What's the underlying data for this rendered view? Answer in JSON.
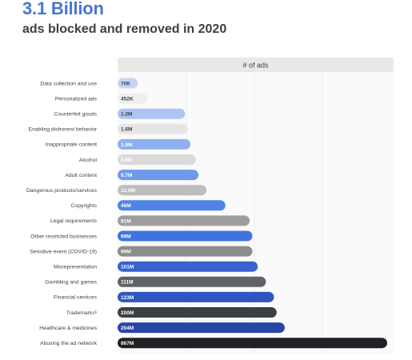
{
  "header": {
    "headline": "3.1 Billion",
    "subhead": "ads blocked and removed in 2020"
  },
  "chart_data": {
    "type": "bar",
    "orientation": "horizontal",
    "column_header": "# of ads",
    "grid": true,
    "categories": [
      "Data collection and use",
      "Personalized ads",
      "Counterfeit goods",
      "Enabling dishonest behavior",
      "Inappropriate content",
      "Alcohol",
      "Adult content",
      "Dangerous products/services",
      "Copyrights",
      "Legal requirements",
      "Other restricted businesses",
      "Sensitive event (COVID-19)",
      "Misrepresentation",
      "Gambling and games",
      "Financial services",
      "Trademarks¹",
      "Healthcare & medicines",
      "Abusing the ad network"
    ],
    "value_labels": [
      "70K",
      "452K",
      "1.2M",
      "1.6M",
      "1.9M",
      "8.8M",
      "9.7M",
      "12.9M",
      "46M",
      "91M",
      "99M",
      "99M",
      "101M",
      "111M",
      "123M",
      "200M",
      "204M",
      "867M"
    ],
    "values": [
      70000,
      452000,
      1200000,
      1600000,
      1900000,
      8800000,
      9700000,
      12900000,
      46000000,
      91000000,
      99000000,
      99000000,
      101000000,
      111000000,
      123000000,
      200000000,
      204000000,
      867000000
    ],
    "bar_levels": [
      0.075,
      0.11,
      0.25,
      0.26,
      0.27,
      0.29,
      0.3,
      0.33,
      0.4,
      0.49,
      0.5,
      0.5,
      0.52,
      0.55,
      0.58,
      0.59,
      0.62,
      1.0
    ],
    "colors": [
      "#c6d4f5",
      "#eeeeee",
      "#aec4f2",
      "#e6e6e6",
      "#8fb0ef",
      "#dadada",
      "#6f9aea",
      "#bdbdbd",
      "#4f84e6",
      "#9e9e9e",
      "#3f74e0",
      "#8c8c8c",
      "#3a63cf",
      "#5f6368",
      "#2f56c0",
      "#3c4043",
      "#2746a8",
      "#202124"
    ],
    "label_colors": [
      "#3c4043",
      "#3c4043",
      "#3c4043",
      "#3c4043",
      "#ffffff",
      "#ffffff",
      "#ffffff",
      "#ffffff",
      "#ffffff",
      "#ffffff",
      "#ffffff",
      "#ffffff",
      "#ffffff",
      "#ffffff",
      "#ffffff",
      "#ffffff",
      "#ffffff",
      "#ffffff"
    ]
  }
}
